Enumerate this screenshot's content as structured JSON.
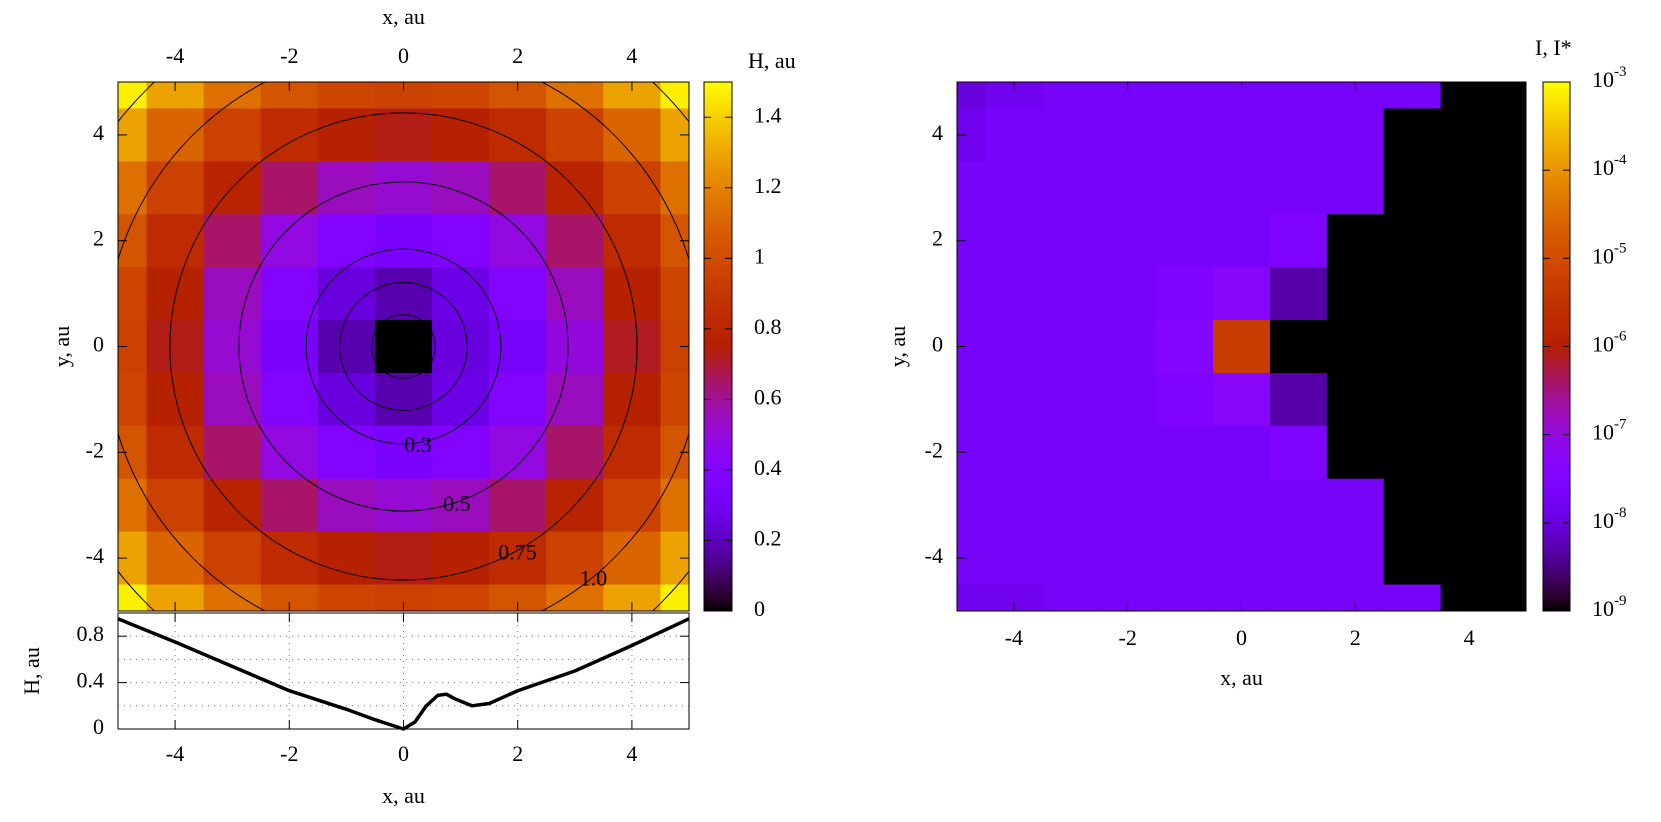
{
  "chart_data": [
    {
      "type": "heatmap",
      "x_label": "x, au",
      "y_label": "y, au",
      "colorbar_label": "H, au",
      "x_axis": "top",
      "x": [
        -5,
        -4,
        -3,
        -2,
        -1,
        0,
        1,
        2,
        3,
        4,
        5
      ],
      "y": [
        5,
        4,
        3,
        2,
        1,
        0,
        -1,
        -2,
        -3,
        -4,
        -5
      ],
      "values": [
        [
          1.47,
          1.29,
          1.14,
          1.04,
          0.97,
          0.95,
          0.97,
          1.04,
          1.14,
          1.29,
          1.47
        ],
        [
          1.29,
          1.1,
          0.95,
          0.83,
          0.76,
          0.73,
          0.76,
          0.83,
          0.95,
          1.1,
          1.29
        ],
        [
          1.14,
          0.95,
          0.78,
          0.65,
          0.55,
          0.52,
          0.55,
          0.65,
          0.78,
          0.95,
          1.14
        ],
        [
          1.04,
          0.83,
          0.65,
          0.49,
          0.39,
          0.35,
          0.39,
          0.49,
          0.65,
          0.83,
          1.04
        ],
        [
          0.97,
          0.76,
          0.55,
          0.39,
          0.25,
          0.18,
          0.27,
          0.39,
          0.55,
          0.76,
          0.97
        ],
        [
          0.95,
          0.73,
          0.52,
          0.35,
          0.18,
          0,
          0.25,
          0.33,
          0.5,
          0.72,
          0.95
        ],
        [
          0.97,
          0.76,
          0.55,
          0.39,
          0.25,
          0.18,
          0.27,
          0.39,
          0.55,
          0.76,
          0.97
        ],
        [
          1.04,
          0.83,
          0.65,
          0.49,
          0.39,
          0.35,
          0.39,
          0.49,
          0.65,
          0.83,
          1.04
        ],
        [
          1.14,
          0.95,
          0.78,
          0.65,
          0.55,
          0.52,
          0.55,
          0.65,
          0.78,
          0.95,
          1.14
        ],
        [
          1.29,
          1.1,
          0.95,
          0.83,
          0.76,
          0.73,
          0.76,
          0.83,
          0.95,
          1.1,
          1.29
        ],
        [
          1.47,
          1.29,
          1.14,
          1.04,
          0.97,
          0.95,
          0.97,
          1.04,
          1.14,
          1.29,
          1.47
        ]
      ],
      "xlim": [
        -5,
        5
      ],
      "ylim": [
        -5,
        5
      ],
      "xticks": [
        -4,
        -2,
        0,
        2,
        4
      ],
      "yticks": [
        -4,
        -2,
        0,
        2,
        4
      ],
      "clim": [
        0,
        1.5
      ],
      "cticks": [
        0,
        0.2,
        0.4,
        0.6,
        0.8,
        1,
        1.2,
        1.4
      ],
      "contour_levels": [
        0.1,
        0.2,
        0.3,
        0.5,
        0.75,
        1,
        1.25
      ],
      "contour_labels": [
        {
          "value": 0.3,
          "label": "0.3"
        },
        {
          "value": 0.5,
          "label": "0.5"
        },
        {
          "value": 0.75,
          "label": "0.75"
        },
        {
          "value": 1,
          "label": "1.0"
        }
      ]
    },
    {
      "type": "line",
      "x_label": "x, au",
      "y_label": "H, au",
      "color": "#000000",
      "x": [
        -5,
        -4,
        -3,
        -2,
        -1,
        -0.5,
        0,
        0.2,
        0.4,
        0.6,
        0.75,
        0.9,
        1.2,
        1.5,
        2,
        3,
        4,
        5
      ],
      "values": [
        0.95,
        0.75,
        0.54,
        0.33,
        0.17,
        0.08,
        0,
        0.06,
        0.2,
        0.29,
        0.3,
        0.26,
        0.2,
        0.22,
        0.33,
        0.5,
        0.72,
        0.95
      ],
      "xlim": [
        -5,
        5
      ],
      "ylim": [
        0,
        1
      ],
      "xticks": [
        -4,
        -2,
        0,
        2,
        4
      ],
      "yticks": [
        0,
        0.4,
        0.8
      ],
      "minor_yticks": [
        0.2,
        0.6
      ],
      "grid": true
    },
    {
      "type": "heatmap",
      "x_label": "x, au",
      "y_label": "y, au",
      "colorbar_label": "I, I*",
      "x_axis": "bottom",
      "log_color": true,
      "x": [
        -5,
        -4,
        -3,
        -2,
        -1,
        0,
        1,
        2,
        3,
        4,
        5
      ],
      "y": [
        5,
        4,
        3,
        2,
        1,
        0,
        -1,
        -2,
        -3,
        -4,
        -5
      ],
      "values": [
        [
          1e-08,
          1.5e-08,
          2e-08,
          2e-08,
          2e-08,
          2e-08,
          2e-08,
          2e-08,
          2e-08,
          1e-09,
          1e-09
        ],
        [
          1.5e-08,
          2e-08,
          2e-08,
          2e-08,
          2e-08,
          2e-08,
          2e-08,
          2e-08,
          1e-09,
          1e-09,
          1e-09
        ],
        [
          2e-08,
          2e-08,
          2e-08,
          2e-08,
          2e-08,
          2e-08,
          2e-08,
          2e-08,
          1e-09,
          1e-09,
          1e-09
        ],
        [
          2e-08,
          2e-08,
          2e-08,
          2e-08,
          2e-08,
          2e-08,
          3e-08,
          1e-09,
          1e-09,
          1e-09,
          1e-09
        ],
        [
          2e-08,
          2e-08,
          2e-08,
          2e-08,
          3e-08,
          5e-08,
          5e-09,
          1e-09,
          1e-09,
          1e-09,
          1e-09
        ],
        [
          2e-08,
          2e-08,
          2e-08,
          2e-08,
          4e-08,
          5e-06,
          1e-09,
          1e-09,
          1e-09,
          1e-09,
          1e-09
        ],
        [
          2e-08,
          2e-08,
          2e-08,
          2e-08,
          3e-08,
          5e-08,
          5e-09,
          1e-09,
          1e-09,
          1e-09,
          1e-09
        ],
        [
          2e-08,
          2e-08,
          2e-08,
          2e-08,
          2e-08,
          2e-08,
          3e-08,
          1e-09,
          1e-09,
          1e-09,
          1e-09
        ],
        [
          2e-08,
          2e-08,
          2e-08,
          2e-08,
          2e-08,
          2e-08,
          2e-08,
          2e-08,
          1e-09,
          1e-09,
          1e-09
        ],
        [
          2e-08,
          2e-08,
          2e-08,
          2e-08,
          2e-08,
          2e-08,
          2e-08,
          2e-08,
          1e-09,
          1e-09,
          1e-09
        ],
        [
          1.5e-08,
          1.5e-08,
          2e-08,
          2e-08,
          2e-08,
          2e-08,
          2e-08,
          2e-08,
          2e-08,
          1e-09,
          1e-09
        ]
      ],
      "xlim": [
        -5,
        5
      ],
      "ylim": [
        -5,
        5
      ],
      "xticks": [
        -4,
        -2,
        0,
        2,
        4
      ],
      "yticks": [
        -4,
        -2,
        0,
        2,
        4
      ],
      "clim": [
        1e-09,
        0.001
      ],
      "cticks": [
        {
          "value": 1e-09,
          "label": "10-9"
        },
        {
          "value": 1e-08,
          "label": "10-8"
        },
        {
          "value": 1e-07,
          "label": "10-7"
        },
        {
          "value": 1e-06,
          "label": "10-6"
        },
        {
          "value": 1e-05,
          "label": "10-5"
        },
        {
          "value": 0.0001,
          "label": "10-4"
        },
        {
          "value": 0.001,
          "label": "10-3"
        }
      ]
    }
  ]
}
